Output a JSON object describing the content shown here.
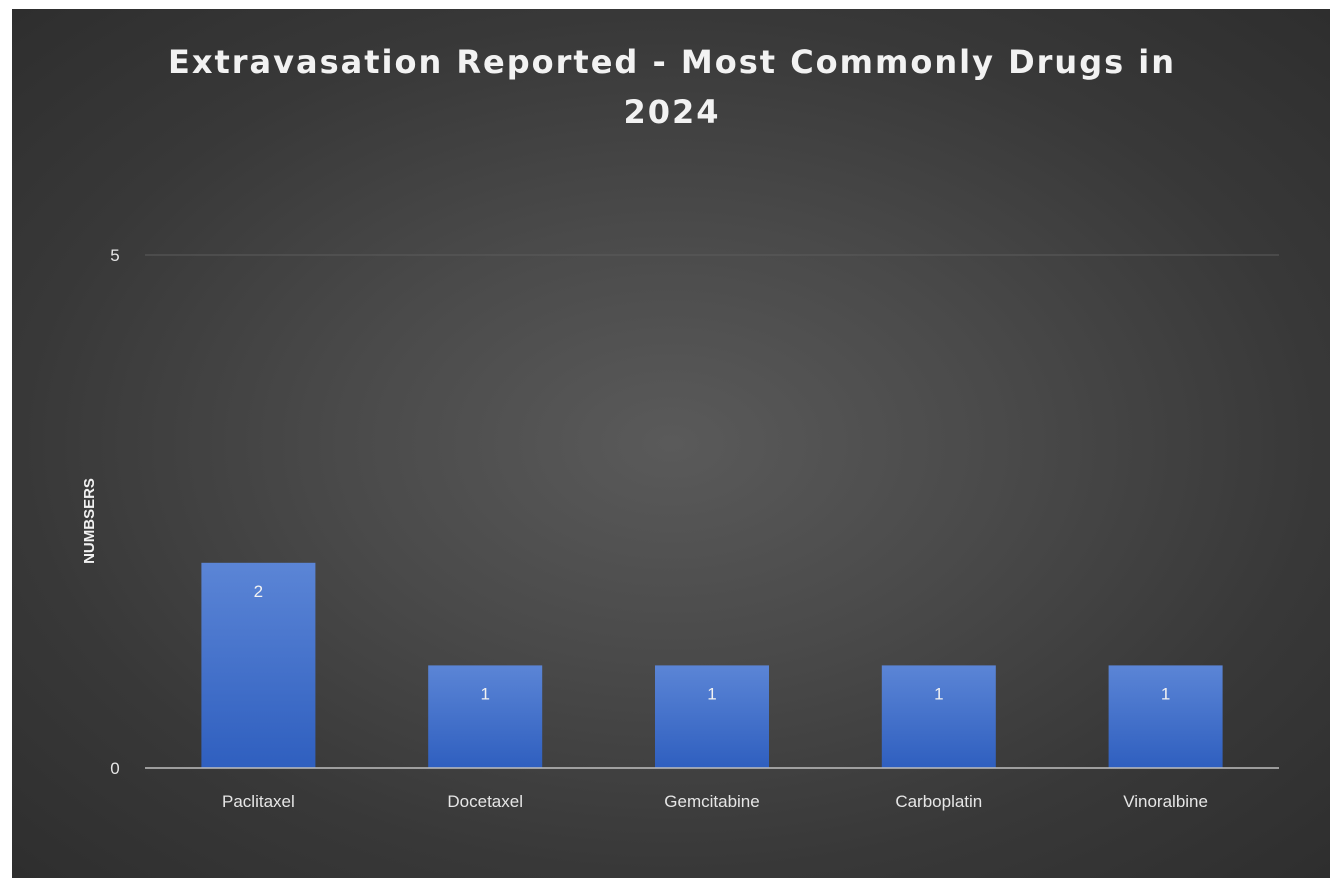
{
  "chart_data": {
    "type": "bar",
    "title": "Extravasation Reported - Most Commonly Drugs in 2024",
    "xlabel": "",
    "ylabel": "NUMBSERS",
    "categories": [
      "Paclitaxel",
      "Docetaxel",
      "Gemcitabine",
      "Carboplatin",
      "Vinoralbine"
    ],
    "values": [
      2,
      1,
      1,
      1,
      1
    ],
    "data_labels": [
      "2",
      "1",
      "1",
      "1",
      "1"
    ],
    "ylim": [
      0,
      5
    ],
    "yticks": [
      0,
      5
    ],
    "ytick_labels": [
      "0",
      "5"
    ],
    "grid": true,
    "legend": "none"
  },
  "colors": {
    "bar_top": "#5b85d6",
    "bar_bottom": "#2f5fbf",
    "background_center": "#5a5a5a",
    "background_edge": "#2e2e2e",
    "text": "#f2f2f2",
    "axis_text": "#e6e6e6",
    "gridline": "#5c5c5c",
    "axis_line": "#bfbfbf"
  }
}
